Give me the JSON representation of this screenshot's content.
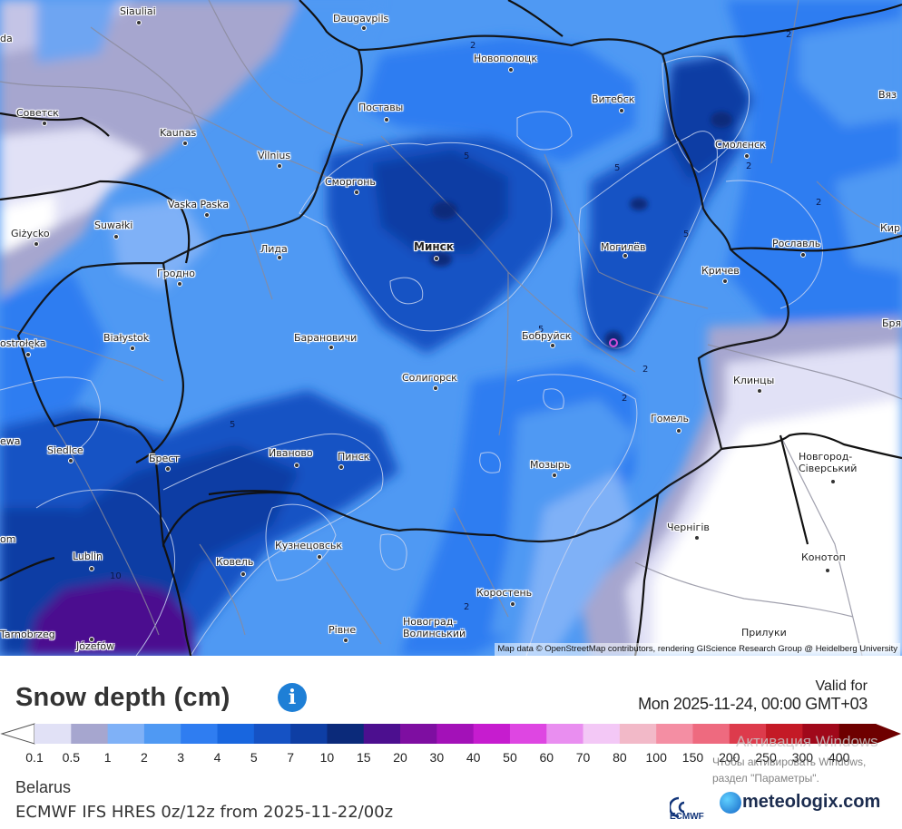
{
  "map": {
    "cities": [
      {
        "name": "Siauliai",
        "big": false
      },
      {
        "name": "Daugavpils",
        "big": false
      },
      {
        "name": "Новополоцк",
        "big": false
      },
      {
        "name": "Советск",
        "big": false
      },
      {
        "name": "Поставы",
        "big": false
      },
      {
        "name": "Витебск",
        "big": false
      },
      {
        "name": "Kaunas",
        "big": false
      },
      {
        "name": "Vilnius",
        "big": false
      },
      {
        "name": "Смолєнск",
        "big": false
      },
      {
        "name": "Сморгонь",
        "big": false
      },
      {
        "name": "Vaska Paska",
        "big": false
      },
      {
        "name": "Suwałki",
        "big": false
      },
      {
        "name": "Giżycko",
        "big": false
      },
      {
        "name": "Минск",
        "big": true
      },
      {
        "name": "Могилёв",
        "big": false
      },
      {
        "name": "Лида",
        "big": false
      },
      {
        "name": "Рославль",
        "big": false
      },
      {
        "name": "Кричев",
        "big": false
      },
      {
        "name": "Гродно",
        "big": false
      },
      {
        "name": "Białystok",
        "big": false
      },
      {
        "name": "ostrołęka",
        "big": false
      },
      {
        "name": "Барановичи",
        "big": false
      },
      {
        "name": "Бобруйск",
        "big": false
      },
      {
        "name": "Солигорск",
        "big": false
      },
      {
        "name": "Клинцы",
        "big": false
      },
      {
        "name": "Гомель",
        "big": false
      },
      {
        "name": "Siedlce",
        "big": false
      },
      {
        "name": "Брест",
        "big": false
      },
      {
        "name": "Иваново",
        "big": false
      },
      {
        "name": "Пинск",
        "big": false
      },
      {
        "name": "Мозырь",
        "big": false
      },
      {
        "name": "Новгород-Сіверський",
        "big": false
      },
      {
        "name": "Чернігів",
        "big": false
      },
      {
        "name": "Кузнецовськ",
        "big": false
      },
      {
        "name": "Ковель",
        "big": false
      },
      {
        "name": "Lublin",
        "big": false
      },
      {
        "name": "Конотоп",
        "big": false
      },
      {
        "name": "Коростень",
        "big": false
      },
      {
        "name": "Новоград-Волинський",
        "big": false
      },
      {
        "name": "Рівне",
        "big": false
      },
      {
        "name": "Прилуки",
        "big": false
      },
      {
        "name": "Józefów",
        "big": false
      },
      {
        "name": "Tarnobrzeg",
        "big": false
      },
      {
        "name": "Вяз",
        "big": false
      },
      {
        "name": "Кир",
        "big": false
      },
      {
        "name": "Бря",
        "big": false
      },
      {
        "name": "ewa",
        "big": false
      },
      {
        "name": "om",
        "big": false
      },
      {
        "name": "da",
        "big": false
      }
    ],
    "contour_labels": [
      "2",
      "5",
      "5",
      "2",
      "2",
      "5",
      "2",
      "5",
      "2",
      "5",
      "10",
      "2",
      "2"
    ],
    "attribution": "Map data © OpenStreetMap contributors, rendering GIScience Research Group @ Heidelberg University"
  },
  "panel": {
    "title": "Snow depth (cm)",
    "info_icon": "i",
    "valid_label": "Valid for",
    "valid_date": "Mon 2025-11-24, 00:00 GMT+03",
    "legend": {
      "ticks": [
        "0.1",
        "0.5",
        "1",
        "2",
        "3",
        "4",
        "5",
        "7",
        "10",
        "15",
        "20",
        "30",
        "40",
        "50",
        "60",
        "70",
        "80",
        "100",
        "150",
        "200",
        "250",
        "300",
        "400"
      ],
      "colors": [
        "#e1e1f6",
        "#a6a6cf",
        "#7fb1f7",
        "#4f99f3",
        "#2f7df1",
        "#1866df",
        "#1552c4",
        "#0e3ea4",
        "#0b2a7a",
        "#4c0f8f",
        "#7e0ea1",
        "#a311b8",
        "#c61ccf",
        "#de46e2",
        "#e98ef0",
        "#f3c8f6",
        "#f2b9c8",
        "#f48ea3",
        "#ee6a7f",
        "#dd3b4c",
        "#c41a26",
        "#a0081a",
        "#6e0000"
      ]
    },
    "region": "Belarus",
    "model": "ECMWF IFS HRES 0z/12z from 2025-11-22/00z",
    "brand": "meteologix.com",
    "ecmwf": "ECMWF",
    "watermark_title": "Активация Windows",
    "watermark_text": "Чтобы активировать Windows, раздел \"Параметры\"."
  }
}
